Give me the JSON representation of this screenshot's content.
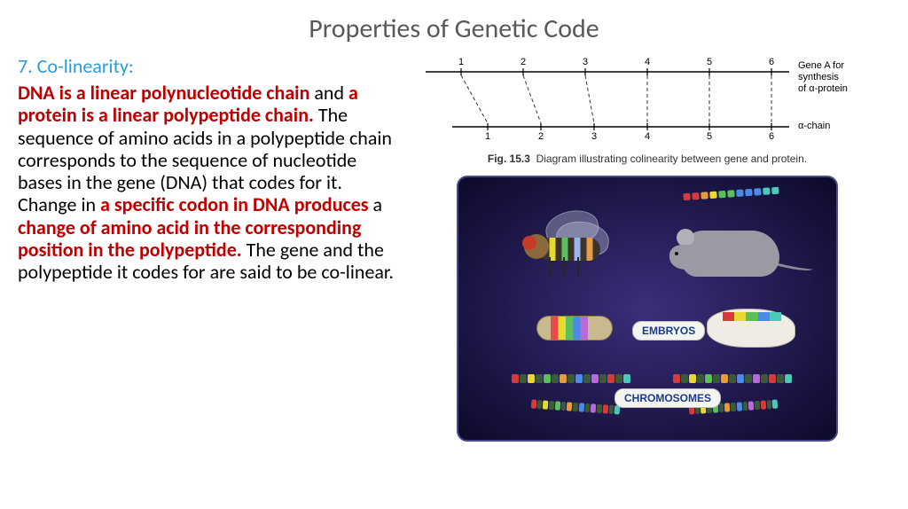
{
  "title": "Properties of Genetic Code",
  "subtitle": "7. Co-linearity:",
  "body_parts": {
    "p1": "DNA is a linear polynucleotide chain",
    "p2": " and ",
    "p3": "a protein is a linear polypeptide chain.",
    "p4": " The sequence of amino acids in a polypeptide chain corresponds to the sequence of nucleotide bases in the gene (DNA) that codes for it. Change in ",
    "p5": "a specific codon in DNA produces",
    "p6": " a ",
    "p7": "change of amino acid in the corresponding position in the polypeptide.",
    "p8": " The gene and the polypeptide it codes for are said to be co-linear."
  },
  "top_diagram": {
    "positions": [
      1,
      2,
      3,
      4,
      5,
      6
    ],
    "label_gene": "Gene A for synthesis of α-protein",
    "label_chain": "α-chain",
    "caption_fig": "Fig. 15.3",
    "caption_text": "Diagram illustrating colinearity between gene and protein.",
    "line_color": "#000000",
    "dash_color": "#333333",
    "font_size_labels": 11,
    "font_size_caption": 12
  },
  "illustration": {
    "bg_gradient_inner": "#3b2f7a",
    "bg_gradient_outer": "#0d0a2a",
    "border_color": "#4a4a8a",
    "embryo_label": "EMBRYOS",
    "chromo_label": "CHROMOSOMES",
    "label_text_color": "#1a3a8a",
    "label_bg": "#f5f5f0",
    "arc_colors": [
      "#d63a3a",
      "#d63a3a",
      "#e89b3a",
      "#e8d832",
      "#5bbf5b",
      "#5bbf5b",
      "#4a8be8",
      "#4a8be8",
      "#4a8be8",
      "#4ac8b8",
      "#4ac8b8"
    ],
    "embryo_stripe_colors": [
      "#d63a3a",
      "#e8d832",
      "#5bbf5b",
      "#4a8be8",
      "#4ac8b8"
    ],
    "chromo_colors": [
      "#d63a3a",
      "#3a5a3a",
      "#e8d832",
      "#3a5a3a",
      "#5bbf5b",
      "#3a5a3a",
      "#e89b3a",
      "#3a5a3a",
      "#4a8be8",
      "#3a5a3a",
      "#b86ad6",
      "#3a5a3a",
      "#d63a3a",
      "#3a5a3a",
      "#4ac8b8"
    ],
    "fly_body_colors": [
      "#3a342c",
      "#e8d832",
      "#5bbf5b",
      "#9bb5e8",
      "#e89b4a"
    ],
    "fly_eye_color": "#c73a2a",
    "mouse_body_color": "#9a9aa4"
  }
}
